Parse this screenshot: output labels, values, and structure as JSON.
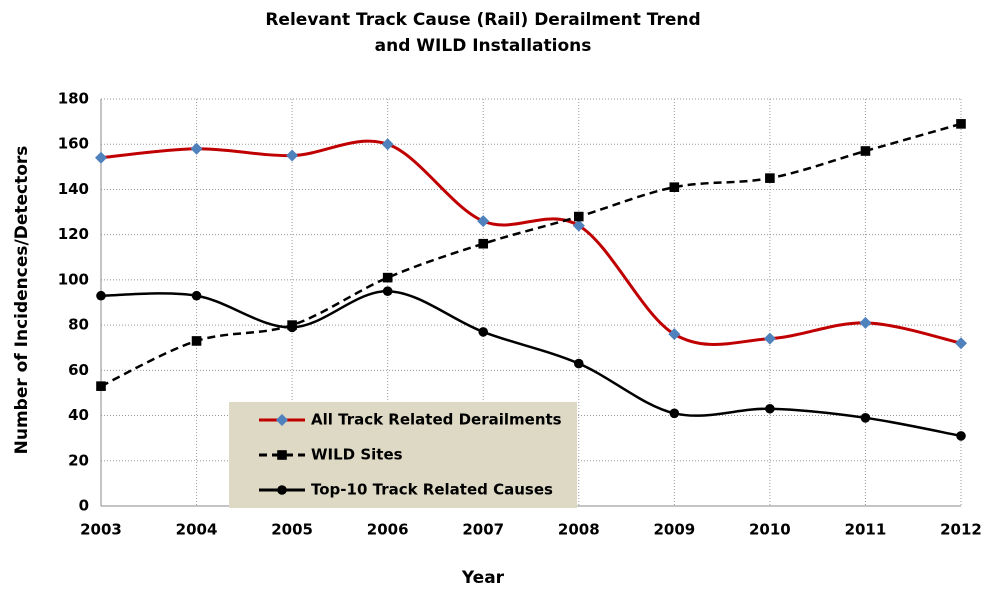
{
  "chart_data": {
    "type": "line",
    "title": [
      "Relevant Track Cause (Rail) Derailment Trend",
      "and WILD Installations"
    ],
    "x_label": "Year",
    "y_label": "Number of Incidences/Detectors",
    "categories": [
      "2003",
      "2004",
      "2005",
      "2006",
      "2007",
      "2008",
      "2009",
      "2010",
      "2011",
      "2012"
    ],
    "series": [
      {
        "name": "All Track Related Derailments",
        "color": "#c00000",
        "marker": "diamond",
        "marker_color": "#4f81bd",
        "dash": "solid",
        "values": [
          154,
          158,
          155,
          160,
          126,
          124,
          76,
          74,
          81,
          72
        ]
      },
      {
        "name": "WILD Sites",
        "color": "#000000",
        "marker": "square",
        "marker_color": "#000000",
        "dash": "dashed",
        "values": [
          53,
          73,
          80,
          101,
          116,
          128,
          141,
          145,
          157,
          169
        ]
      },
      {
        "name": "Top-10 Track Related Causes",
        "color": "#000000",
        "marker": "circle",
        "marker_color": "#000000",
        "dash": "solid",
        "values": [
          93,
          93,
          79,
          95,
          77,
          63,
          41,
          43,
          39,
          31
        ]
      }
    ],
    "ylim": [
      0,
      180
    ],
    "yticks": [
      0,
      20,
      40,
      60,
      80,
      100,
      120,
      140,
      160,
      180
    ],
    "grid": true,
    "smooth": true,
    "legend": "lower left"
  }
}
